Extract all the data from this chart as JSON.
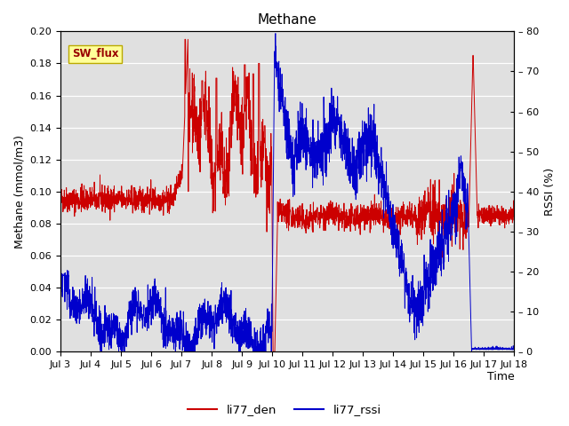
{
  "title": "Methane",
  "xlabel": "Time",
  "ylabel_left": "Methane (mmol/m3)",
  "ylabel_right": "RSSI (%)",
  "x_tick_labels": [
    "Jul 3",
    "Jul 4",
    "Jul 5",
    "Jul 6",
    "Jul 7",
    "Jul 8",
    "Jul 9",
    "Jul 10",
    "Jul 11",
    "Jul 12",
    "Jul 13",
    "Jul 14",
    "Jul 15",
    "Jul 16",
    "Jul 17",
    "Jul 18"
  ],
  "ylim_left": [
    0.0,
    0.2
  ],
  "ylim_right": [
    0,
    80
  ],
  "yticks_left": [
    0.0,
    0.02,
    0.04,
    0.06,
    0.08,
    0.1,
    0.12,
    0.14,
    0.16,
    0.18,
    0.2
  ],
  "yticks_right": [
    0,
    10,
    20,
    30,
    40,
    50,
    60,
    70,
    80
  ],
  "color_den": "#cc0000",
  "color_rssi": "#0000cc",
  "bg_color": "#e0e0e0",
  "legend_den": "li77_den",
  "legend_rssi": "li77_rssi",
  "annotation_text": "SW_flux",
  "annotation_bg": "#ffff99",
  "annotation_border": "#bbaa00",
  "n_days": 16,
  "pts_per_day": 150
}
